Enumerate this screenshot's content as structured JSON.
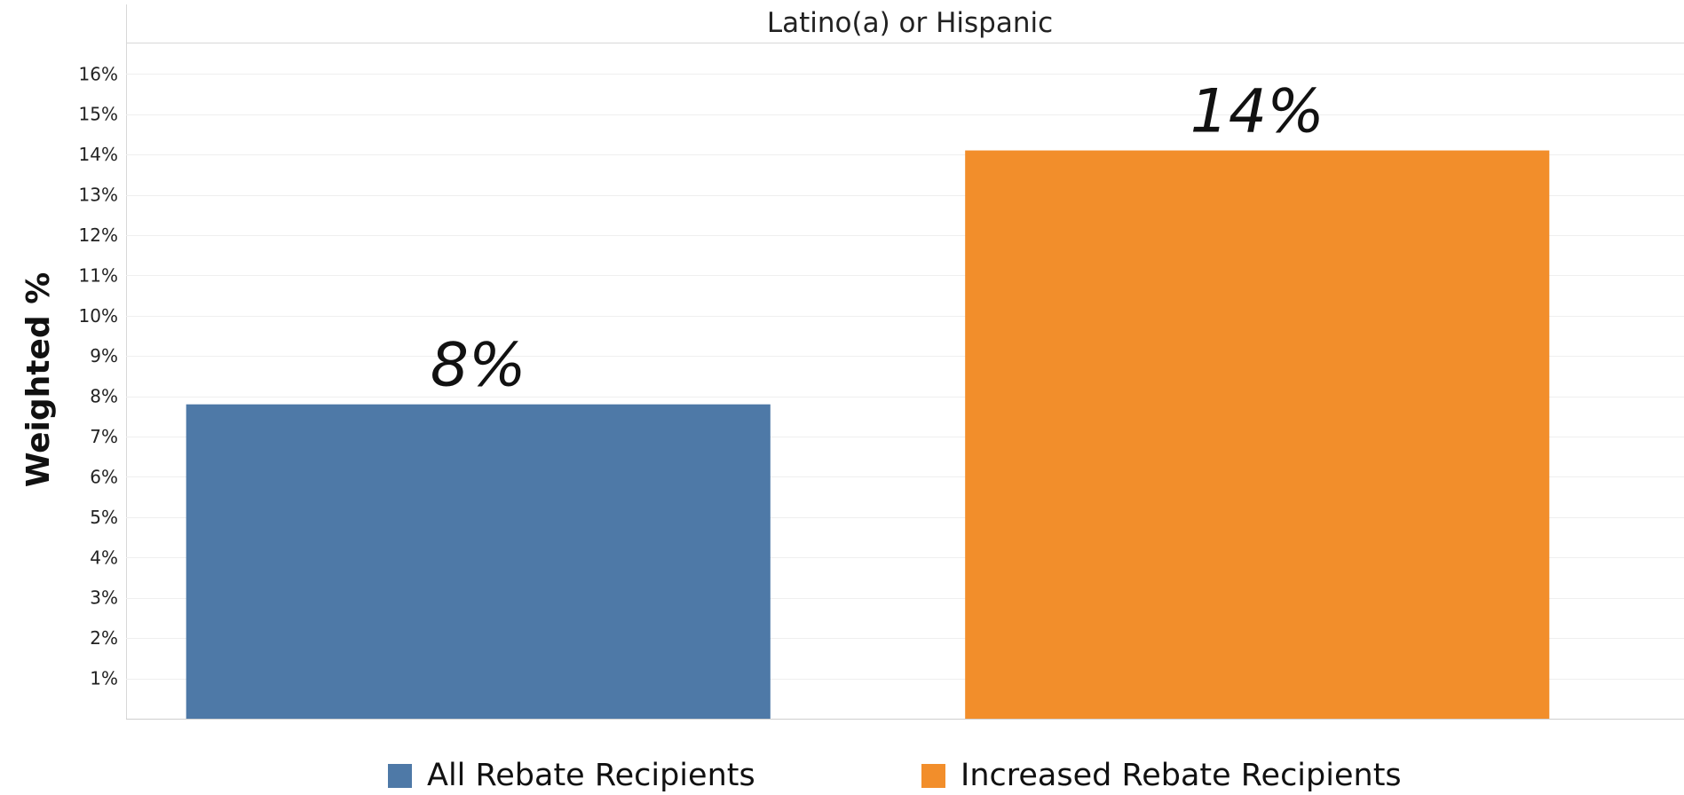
{
  "chart_data": {
    "type": "bar",
    "title": "Latino(a) or Hispanic",
    "ylabel": "Weighted %",
    "xlabel": "",
    "categories": [
      "All Rebate Recipients",
      "Increased Rebate Recipients"
    ],
    "values": [
      7.8,
      14.1
    ],
    "data_labels": [
      "8%",
      "14%"
    ],
    "colors": [
      "#4e79a7",
      "#f28e2b"
    ],
    "ylim": [
      0,
      16.6
    ],
    "yticks": [
      1,
      2,
      3,
      4,
      5,
      6,
      7,
      8,
      9,
      10,
      11,
      12,
      13,
      14,
      15,
      16
    ],
    "ytick_labels": [
      "1%",
      "2%",
      "3%",
      "4%",
      "5%",
      "6%",
      "7%",
      "8%",
      "9%",
      "10%",
      "11%",
      "12%",
      "13%",
      "14%",
      "15%",
      "16%"
    ],
    "grid": true,
    "legend_position": "bottom",
    "legend": [
      {
        "label": "All Rebate Recipients",
        "color": "#4e79a7"
      },
      {
        "label": "Increased Rebate Recipients",
        "color": "#f28e2b"
      }
    ]
  }
}
